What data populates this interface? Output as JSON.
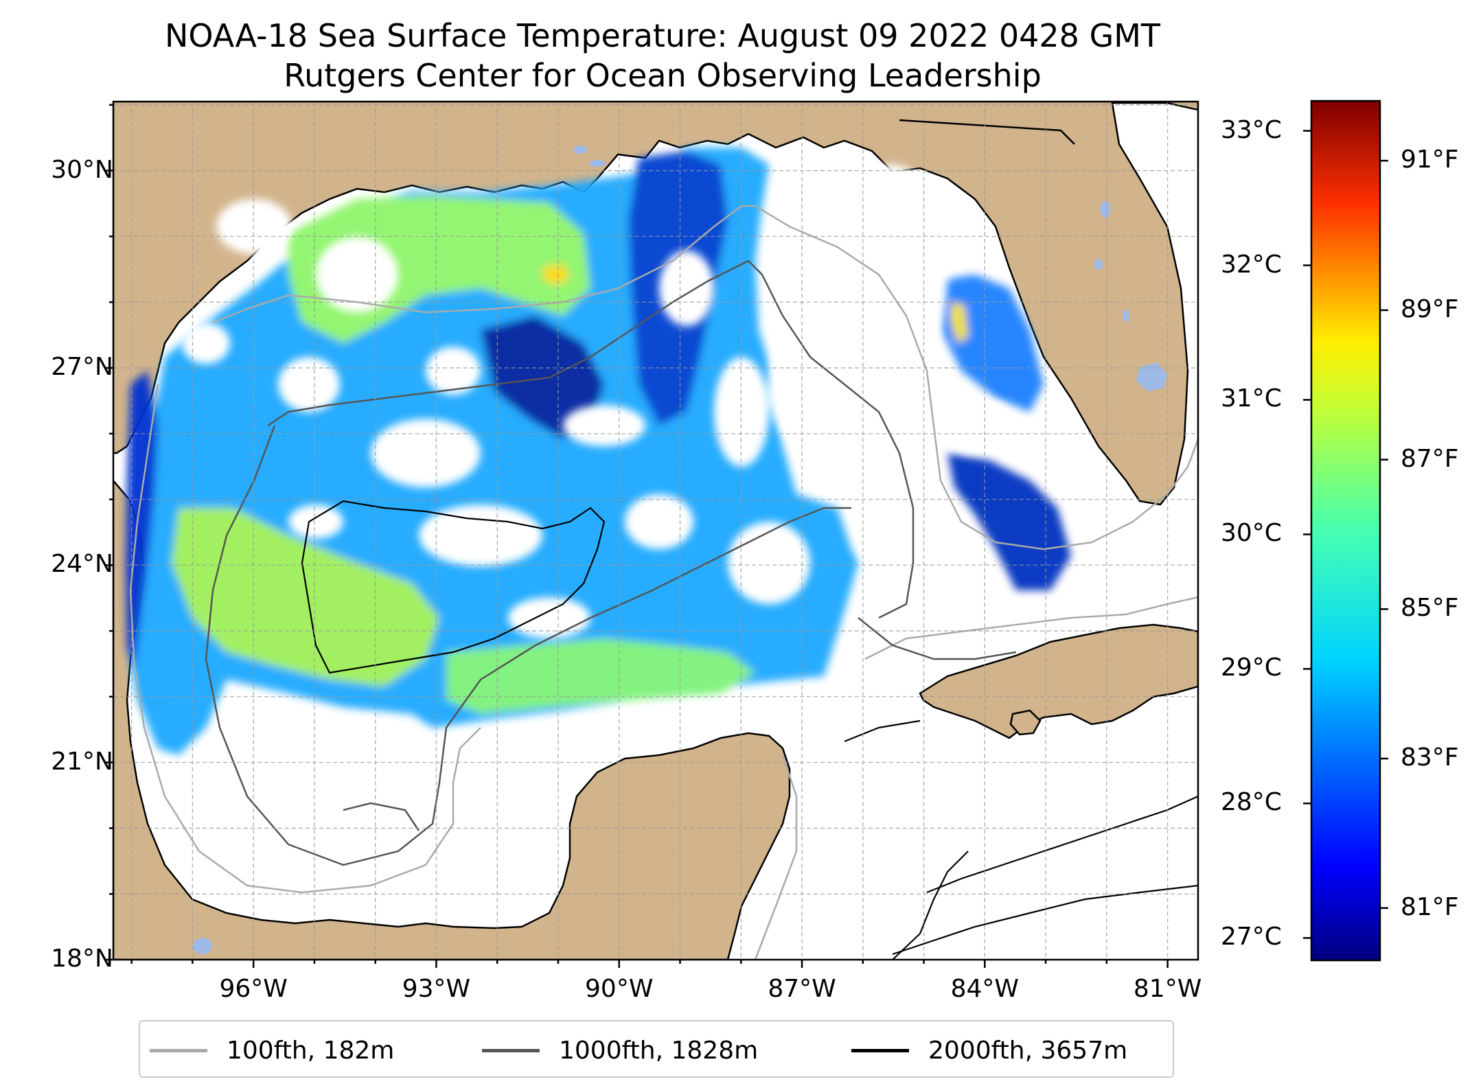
{
  "title": {
    "line1": "NOAA-18 Sea Surface Temperature: August 09 2022 0428 GMT",
    "line2": "Rutgers Center for Ocean Observing Leadership"
  },
  "axes": {
    "lat_ticks": [
      "30°N",
      "27°N",
      "24°N",
      "21°N",
      "18°N"
    ],
    "lat_values": [
      30,
      27,
      24,
      21,
      18
    ],
    "lon_ticks": [
      "96°W",
      "93°W",
      "90°W",
      "87°W",
      "84°W",
      "81°W"
    ],
    "lon_values": [
      -96,
      -93,
      -90,
      -87,
      -84,
      -81
    ],
    "lat_range": [
      18,
      31.05
    ],
    "lon_range": [
      -98.3,
      -80.5
    ],
    "grid": "dashed"
  },
  "colorbar": {
    "celsius_ticks": [
      "33°C",
      "32°C",
      "31°C",
      "30°C",
      "29°C",
      "28°C",
      "27°C"
    ],
    "celsius_values": [
      33,
      32,
      31,
      30,
      29,
      28,
      27
    ],
    "fahrenheit_ticks": [
      "91°F",
      "89°F",
      "87°F",
      "85°F",
      "83°F",
      "81°F"
    ],
    "fahrenheit_values": [
      91,
      89,
      87,
      85,
      83,
      81
    ],
    "range_f": [
      80.3,
      91.8
    ],
    "colormap": "jet"
  },
  "legend": {
    "items": [
      {
        "label": "100fth, 182m",
        "color": "#aaaaaa"
      },
      {
        "label": "1000fth, 1828m",
        "color": "#555555"
      },
      {
        "label": "2000fth, 3657m",
        "color": "#000000"
      }
    ]
  },
  "colors": {
    "land": "#d2b48c",
    "lakes": "#9db9e8",
    "ocean_no_data": "#ffffff"
  }
}
